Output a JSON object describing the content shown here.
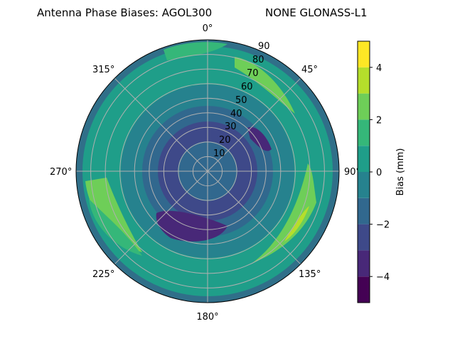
{
  "chart_data": {
    "type": "polar-contour",
    "title_left": "Antenna Phase Biases: AGOL300",
    "title_right": "NONE GLONASS-L1",
    "angle_ticks": [
      "0°",
      "45°",
      "90°",
      "135°",
      "180°",
      "225°",
      "270°",
      "315°"
    ],
    "radial_ticks": [
      "10",
      "20",
      "30",
      "40",
      "50",
      "60",
      "70",
      "80",
      "90"
    ],
    "radial_range": [
      0,
      90
    ],
    "colorbar": {
      "label": "Bias (mm)",
      "ticks": [
        "4",
        "2",
        "0",
        "−2",
        "−4"
      ],
      "tick_values": [
        4,
        2,
        0,
        -2,
        -4
      ],
      "range": [
        -5,
        5
      ],
      "levels": [
        -5,
        -4,
        -3,
        -2,
        -1,
        0,
        1,
        2,
        3,
        4,
        5
      ],
      "colormap": "viridis",
      "colors": [
        "#440154",
        "#482878",
        "#3e4989",
        "#31688e",
        "#26828e",
        "#1f9e89",
        "#35b779",
        "#6ece58",
        "#b5de2b",
        "#fde725"
      ]
    },
    "zones": [
      {
        "level": "negative",
        "azimuth": 200,
        "zenith": 55,
        "value": -3.5
      },
      {
        "level": "negative",
        "azimuth": 50,
        "zenith": 45,
        "value": -3.8
      },
      {
        "level": "positive",
        "azimuth": 130,
        "zenith": 75,
        "value": 3.8
      },
      {
        "level": "positive",
        "azimuth": 250,
        "zenith": 78,
        "value": 2.5
      },
      {
        "level": "positive",
        "azimuth": 40,
        "zenith": 75,
        "value": 2.5
      }
    ],
    "grid": true
  }
}
